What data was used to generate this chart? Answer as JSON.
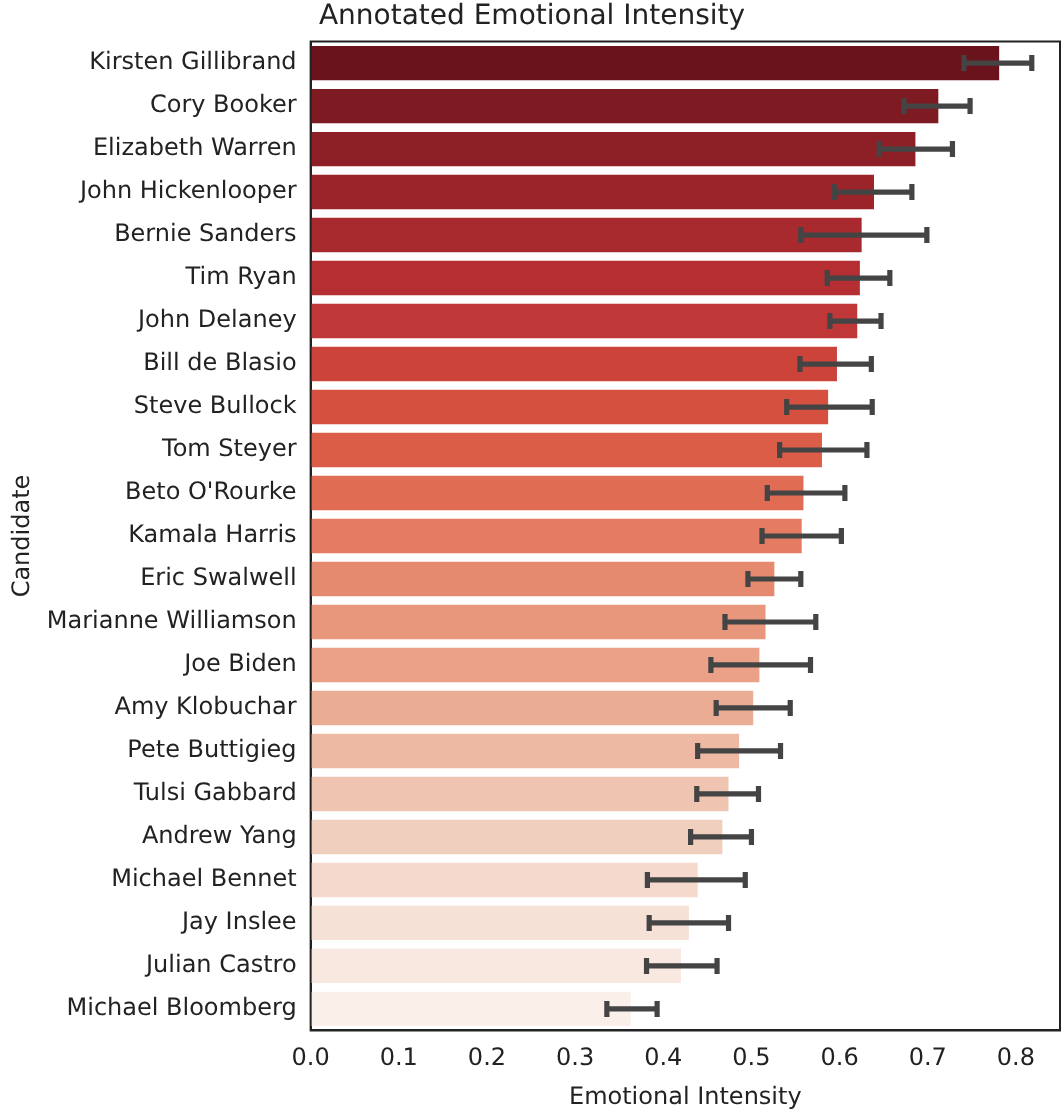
{
  "chart_data": {
    "type": "bar",
    "orientation": "horizontal",
    "title": "Annotated Emotional Intensity",
    "xlabel": "Emotional Intensity",
    "ylabel": "Candidate",
    "categories": [
      "Kirsten Gillibrand",
      "Cory Booker",
      "Elizabeth Warren",
      "John Hickenlooper",
      "Bernie Sanders",
      "Tim Ryan",
      "John Delaney",
      "Bill de Blasio",
      "Steve Bullock",
      "Tom Steyer",
      "Beto O'Rourke",
      "Kamala Harris",
      "Eric Swalwell",
      "Marianne Williamson",
      "Joe Biden",
      "Amy Klobuchar",
      "Pete Buttigieg",
      "Tulsi Gabbard",
      "Andrew Yang",
      "Michael Bennet",
      "Jay Inslee",
      "Julian Castro",
      "Michael Bloomberg"
    ],
    "values": [
      0.781,
      0.712,
      0.686,
      0.639,
      0.625,
      0.623,
      0.62,
      0.597,
      0.587,
      0.58,
      0.559,
      0.557,
      0.526,
      0.516,
      0.509,
      0.502,
      0.486,
      0.474,
      0.467,
      0.439,
      0.429,
      0.42,
      0.363
    ],
    "errors": [
      [
        0.741,
        0.818
      ],
      [
        0.673,
        0.748
      ],
      [
        0.645,
        0.728
      ],
      [
        0.594,
        0.682
      ],
      [
        0.556,
        0.699
      ],
      [
        0.586,
        0.657
      ],
      [
        0.589,
        0.647
      ],
      [
        0.555,
        0.636
      ],
      [
        0.54,
        0.637
      ],
      [
        0.532,
        0.631
      ],
      [
        0.518,
        0.606
      ],
      [
        0.512,
        0.602
      ],
      [
        0.496,
        0.556
      ],
      [
        0.47,
        0.573
      ],
      [
        0.454,
        0.567
      ],
      [
        0.46,
        0.544
      ],
      [
        0.439,
        0.533
      ],
      [
        0.438,
        0.508
      ],
      [
        0.431,
        0.5
      ],
      [
        0.382,
        0.493
      ],
      [
        0.384,
        0.474
      ],
      [
        0.381,
        0.461
      ],
      [
        0.336,
        0.393
      ]
    ],
    "colors": [
      "#6b131c",
      "#7e1b22",
      "#8d1f26",
      "#9a242a",
      "#a82a2e",
      "#b52f32",
      "#c03737",
      "#cb4339",
      "#d5503f",
      "#dc5d47",
      "#e16c54",
      "#e47b62",
      "#e68a6f",
      "#e8967c",
      "#eaa188",
      "#ebac94",
      "#edb9a2",
      "#efc5b2",
      "#f1cfbf",
      "#f4d9cc",
      "#f6e1d7",
      "#f8e8e0",
      "#faefe9"
    ],
    "xlim": [
      0,
      0.85
    ],
    "xticks": [
      {
        "value": 0,
        "label": "0.0"
      },
      0.1,
      0.2,
      0.3,
      0.4,
      0.5,
      0.6,
      0.7,
      0.8
    ],
    "grid": false,
    "legend": false
  }
}
